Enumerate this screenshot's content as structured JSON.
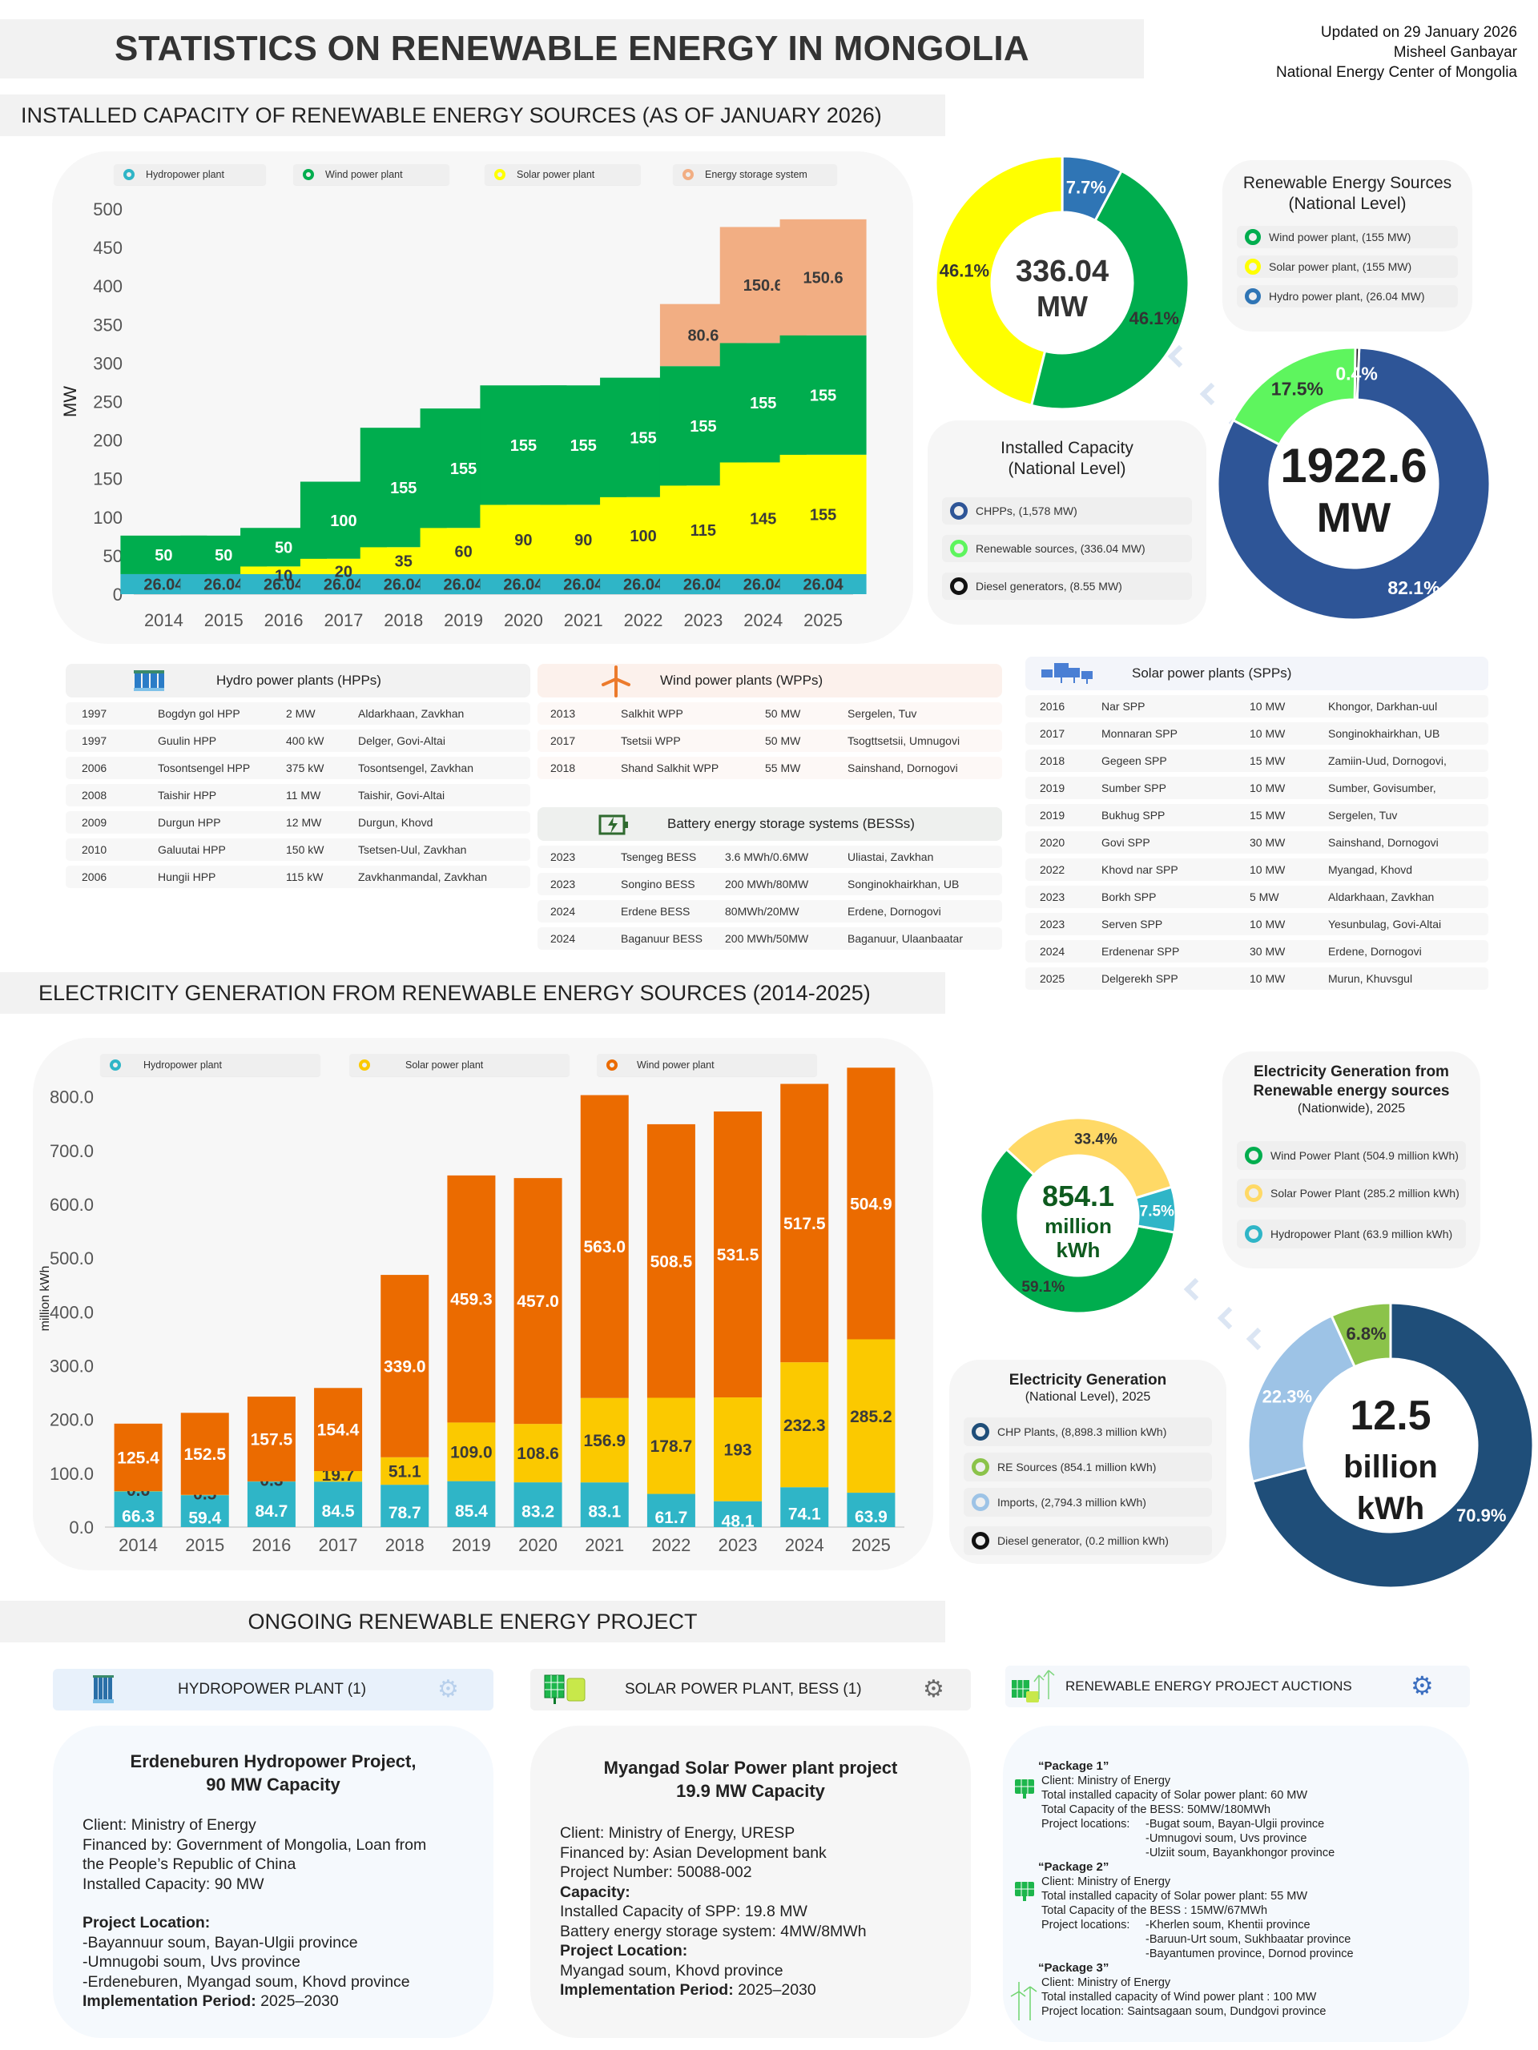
{
  "header": {
    "title": "STATISTICS ON RENEWABLE ENERGY IN MONGOLIA",
    "updated": "Updated on 29 January 2026",
    "author": "Misheel Ganbayar",
    "org": "National Energy Center of Mongolia"
  },
  "sections": {
    "installed": "INSTALLED CAPACITY OF RENEWABLE ENERGY SOURCES (AS OF JANUARY 2026)",
    "generation": "ELECTRICITY GENERATION FROM RENEWABLE ENERGY SOURCES (2014-2025)",
    "ongoing": "ONGOING RENEWABLE ENERGY PROJECT"
  },
  "colors": {
    "hydro": "#2fb5c7",
    "wind": "#00ad4e",
    "solar": "#ffff00",
    "storage": "#f2ae83",
    "gen_wind": "#eb6b00",
    "gen_solar": "#fbc900",
    "chpp": "#2e5597",
    "renew_light": "#5ef55e",
    "pie_hydro": "#2f75b5"
  },
  "chart_data": [
    {
      "type": "bar",
      "stacked": true,
      "title": "Installed capacity of renewable energy sources",
      "ylabel": "MW",
      "xlabel": "",
      "ylim": [
        0,
        500
      ],
      "yticks": [
        0,
        50,
        100,
        150,
        200,
        250,
        300,
        350,
        400,
        450,
        500
      ],
      "categories": [
        "2014",
        "2015",
        "2016",
        "2017",
        "2018",
        "2019",
        "2020",
        "2021",
        "2022",
        "2023",
        "2024",
        "2025"
      ],
      "legend_position": "top",
      "series": [
        {
          "name": "Hydropower plant",
          "color": "#2fb5c7",
          "values": [
            26.04,
            26.04,
            26.04,
            26.04,
            26.04,
            26.04,
            26.04,
            26.04,
            26.04,
            26.04,
            26.04,
            26.04
          ],
          "labels": [
            "26.04",
            "26.04",
            "26.04",
            "26.04",
            "26.04",
            "26.04",
            "26.04",
            "26.04",
            "26.04",
            "26.04",
            "26.04",
            "26.04"
          ]
        },
        {
          "name": "Solar power plant",
          "color": "#ffff00",
          "values": [
            0,
            0,
            10,
            20,
            35,
            60,
            90,
            90,
            100,
            115,
            145,
            155
          ],
          "labels": [
            "",
            "",
            "10",
            "20",
            "35",
            "60",
            "90",
            "90",
            "100",
            "115",
            "145",
            "155"
          ]
        },
        {
          "name": "Wind power plant",
          "color": "#00ad4e",
          "values": [
            50,
            50,
            50,
            100,
            155,
            155,
            155,
            155,
            155,
            155,
            155,
            155
          ],
          "labels": [
            "50",
            "50",
            "50",
            "100",
            "155",
            "155",
            "155",
            "155",
            "155",
            "155",
            "155",
            "155"
          ]
        },
        {
          "name": "Energy storage system",
          "color": "#f2ae83",
          "values": [
            0,
            0,
            0,
            0,
            0,
            0,
            0,
            0,
            0,
            80.6,
            150.6,
            150.6
          ],
          "labels": [
            "",
            "",
            "",
            "",
            "",
            "",
            "",
            "",
            "",
            "80.6",
            "150.6",
            "150.6"
          ]
        }
      ],
      "legend": [
        "Hydropower plant",
        "Wind power plant",
        "Solar power plant",
        "Energy storage system"
      ]
    },
    {
      "type": "pie",
      "donut": true,
      "title": "Renewable Energy Sources (National Level)",
      "center_value": "336.04",
      "center_unit": "MW",
      "slices": [
        {
          "name": "Wind power plant",
          "value": 155,
          "percent": "46.1%",
          "color": "#00ad4e"
        },
        {
          "name": "Solar power plant",
          "value": 155,
          "percent": "46.1%",
          "color": "#ffff00"
        },
        {
          "name": "Hydro power plant",
          "value": 26.04,
          "percent": "7.7%",
          "color": "#2f75b5"
        }
      ]
    },
    {
      "type": "pie",
      "donut": true,
      "title": "Installed Capacity (National Level)",
      "center_value": "1922.6",
      "center_unit": "MW",
      "slices": [
        {
          "name": "CHPPs",
          "value": 1578,
          "percent": "82.1%",
          "color": "#2e5597"
        },
        {
          "name": "Renewable sources",
          "value": 336.04,
          "percent": "17.5%",
          "color": "#5ef55e"
        },
        {
          "name": "Diesel generators",
          "value": 8.55,
          "percent": "0.4%",
          "color": "#111111"
        }
      ]
    },
    {
      "type": "bar",
      "stacked": true,
      "title": "Electricity generation from renewable energy sources (2014-2025)",
      "ylabel": "million kWh",
      "xlabel": "",
      "ylim": [
        0,
        850
      ],
      "yticks": [
        0,
        100,
        200,
        300,
        400,
        500,
        600,
        700,
        800
      ],
      "ytick_labels": [
        "0.0",
        "100.0",
        "200.0",
        "300.0",
        "400.0",
        "500.0",
        "600.0",
        "700.0",
        "800.0"
      ],
      "categories": [
        "2014",
        "2015",
        "2016",
        "2017",
        "2018",
        "2019",
        "2020",
        "2021",
        "2022",
        "2023",
        "2024",
        "2025"
      ],
      "legend_position": "top",
      "series": [
        {
          "name": "Hydropower plant",
          "color": "#2fb5c7",
          "values": [
            66.3,
            59.4,
            84.7,
            84.5,
            78.7,
            85.4,
            83.2,
            83.1,
            61.7,
            48.1,
            74.1,
            63.9
          ],
          "labels": [
            "66.3",
            "59.4",
            "84.7",
            "84.5",
            "78.7",
            "85.4",
            "83.2",
            "83.1",
            "61.7",
            "48.1",
            "74.1",
            "63.9"
          ]
        },
        {
          "name": "Solar power plant",
          "color": "#fbc900",
          "values": [
            0.6,
            0.5,
            0.3,
            19.7,
            51.1,
            109.0,
            108.6,
            156.9,
            178.7,
            193,
            232.3,
            285.2
          ],
          "labels": [
            "0.6",
            "0.5",
            "0.3",
            "19.7",
            "51.1",
            "109.0",
            "108.6",
            "156.9",
            "178.7",
            "193",
            "232.3",
            "285.2"
          ]
        },
        {
          "name": "Wind power plant",
          "color": "#eb6b00",
          "values": [
            125.4,
            152.5,
            157.5,
            154.4,
            339.0,
            459.3,
            457.0,
            563.0,
            508.5,
            531.5,
            517.5,
            504.9
          ],
          "labels": [
            "125.4",
            "152.5",
            "157.5",
            "154.4",
            "339.0",
            "459.3",
            "457.0",
            "563.0",
            "508.5",
            "531.5",
            "517.5",
            "504.9"
          ]
        }
      ],
      "legend": [
        "Hydropower plant",
        "Solar power plant",
        "Wind power plant"
      ]
    },
    {
      "type": "pie",
      "donut": true,
      "title": "Electricity Generation from Renewable energy sources (Nationwide), 2025",
      "center_value": "854.1",
      "center_unit": "million kWh",
      "slices": [
        {
          "name": "Wind Power Plant",
          "value": 504.9,
          "percent": "59.1%",
          "color": "#00ad4e"
        },
        {
          "name": "Solar Power Plant",
          "value": 285.2,
          "percent": "33.4%",
          "color": "#ffd966"
        },
        {
          "name": "Hydropower Plant",
          "value": 63.9,
          "percent": "7.5%",
          "color": "#2fb5c7"
        }
      ]
    },
    {
      "type": "pie",
      "donut": true,
      "title": "Electricity Generation (National Level), 2025",
      "center_value": "12.5",
      "center_unit": "billion kWh",
      "slices": [
        {
          "name": "CHP Plants",
          "value": 8898.3,
          "percent": "70.9%",
          "color": "#1f4e79"
        },
        {
          "name": "Imports",
          "value": 2794.3,
          "percent": "22.3%",
          "color": "#9dc3e6"
        },
        {
          "name": "RE Sources",
          "value": 854.1,
          "percent": "6.8%",
          "color": "#8bc34a"
        },
        {
          "name": "Diesel generator",
          "value": 0.2,
          "percent": "",
          "color": "#111111"
        }
      ]
    }
  ],
  "legends": {
    "res_national": {
      "title1": "Renewable Energy Sources",
      "title2": "(National Level)",
      "items": [
        "Wind power plant, (155 MW)",
        "Solar power plant, (155 MW)",
        "Hydro power plant, (26.04 MW)"
      ]
    },
    "installed_national": {
      "title1": "Installed Capacity",
      "title2": "(National Level)",
      "items": [
        "CHPPs, (1,578 MW)",
        "Renewable sources, (336.04 MW)",
        "Diesel generators, (8.55 MW)"
      ]
    },
    "re_gen": {
      "title1": "Electricity Generation from",
      "title2": "Renewable energy sources",
      "title3": "(Nationwide), 2025",
      "items": [
        "Wind Power Plant (504.9 million kWh)",
        "Solar Power Plant (285.2 million kWh)",
        "Hydropower Plant (63.9 million kWh)"
      ]
    },
    "national_gen": {
      "title1": "Electricity Generation",
      "title2": "(National Level), 2025",
      "items": [
        "CHP Plants, (8,898.3 million kWh)",
        "RE Sources (854.1 million kWh)",
        "Imports, (2,794.3 million kWh)",
        "Diesel generator, (0.2 million kWh)"
      ]
    }
  },
  "tables": {
    "hpp": {
      "title": "Hydro power plants (HPPs)",
      "rows": [
        [
          "1997",
          "Bogdyn gol HPP",
          "2 MW",
          "Aldarkhaan, Zavkhan"
        ],
        [
          "1997",
          "Guulin HPP",
          "400 kW",
          "Delger, Govi-Altai"
        ],
        [
          "2006",
          "Tosontsengel HPP",
          "375 kW",
          "Tosontsengel, Zavkhan"
        ],
        [
          "2008",
          "Taishir HPP",
          "11 MW",
          "Taishir, Govi-Altai"
        ],
        [
          "2009",
          "Durgun HPP",
          "12 MW",
          "Durgun, Khovd"
        ],
        [
          "2010",
          "Galuutai HPP",
          "150 kW",
          "Tsetsen-Uul, Zavkhan"
        ],
        [
          "2006",
          "Hungii HPP",
          "115 kW",
          "Zavkhanmandal, Zavkhan"
        ]
      ]
    },
    "wpp": {
      "title": "Wind power plants (WPPs)",
      "rows": [
        [
          "2013",
          "Salkhit WPP",
          "50 MW",
          "Sergelen, Tuv"
        ],
        [
          "2017",
          "Tsetsii WPP",
          "50 MW",
          "Tsogttsetsii, Umnugovi"
        ],
        [
          "2018",
          "Shand Salkhit WPP",
          "55 MW",
          "Sainshand, Dornogovi"
        ]
      ]
    },
    "bess": {
      "title": "Battery energy storage systems (BESSs)",
      "rows": [
        [
          "2023",
          "Tsengeg BESS",
          "3.6 MWh/0.6MW",
          "Uliastai, Zavkhan"
        ],
        [
          "2023",
          "Songino BESS",
          "200 MWh/80MW",
          "Songinokhairkhan, UB"
        ],
        [
          "2024",
          "Erdene BESS",
          "80MWh/20MW",
          "Erdene, Dornogovi"
        ],
        [
          "2024",
          "Baganuur BESS",
          "200 MWh/50MW",
          "Baganuur, Ulaanbaatar"
        ]
      ]
    },
    "spp": {
      "title": "Solar power plants (SPPs)",
      "rows": [
        [
          "2016",
          "Nar SPP",
          "10 MW",
          "Khongor, Darkhan-uul"
        ],
        [
          "2017",
          "Monnaran SPP",
          "10 MW",
          "Songinokhairkhan, UB"
        ],
        [
          "2018",
          "Gegeen SPP",
          "15 MW",
          "Zamiin-Uud, Dornogovi,"
        ],
        [
          "2019",
          "Sumber SPP",
          "10 MW",
          "Sumber, Govisumber,"
        ],
        [
          "2019",
          "Bukhug SPP",
          "15 MW",
          "Sergelen, Tuv"
        ],
        [
          "2020",
          "Govi SPP",
          "30 MW",
          "Sainshand, Dornogovi"
        ],
        [
          "2022",
          "Khovd nar SPP",
          "10 MW",
          "Myangad, Khovd"
        ],
        [
          "2023",
          "Borkh SPP",
          "5 MW",
          "Aldarkhaan, Zavkhan"
        ],
        [
          "2023",
          "Serven SPP",
          "10 MW",
          "Yesunbulag, Govi-Altai"
        ],
        [
          "2024",
          "Erdenenar SPP",
          "30 MW",
          "Erdene, Dornogovi"
        ],
        [
          "2025",
          "Delgerekh SPP",
          "10 MW",
          "Murun, Khuvsgul"
        ]
      ]
    }
  },
  "projects": {
    "tabs": [
      "HYDROPOWER PLANT (1)",
      "SOLAR POWER PLANT, BESS (1)",
      "RENEWABLE ENERGY PROJECT AUCTIONS"
    ],
    "hydro": {
      "title1": "Erdeneburen Hydropower Project,",
      "title2": "90 MW Capacity",
      "client": "Client: Ministry of Energy",
      "financed1": "Financed by: Government of Mongolia, Loan from",
      "financed2": "the People’s Republic of China",
      "capacity": "Installed Capacity: 90 MW",
      "loc_label": "Project Location:",
      "locs": [
        "-Bayannuur soum, Bayan-Ulgii province",
        "-Umnugobi soum, Uvs province",
        "-Erdeneburen, Myangad soum, Khovd province"
      ],
      "period_label": "Implementation Period:",
      "period": " 2025–2030"
    },
    "solar": {
      "title1": "Myangad Solar Power plant project",
      "title2": "19.9 MW Capacity",
      "client": "Client: Ministry of Energy, URESP",
      "financed": "Financed by: Asian Development bank",
      "number": "Project Number: 50088-002",
      "cap_label": "Capacity:",
      "spp": "Installed Capacity of SPP: 19.8 MW",
      "bess": "Battery energy storage system: 4MW/8MWh",
      "loc_label": "Project Location:",
      "loc": "Myangad soum, Khovd province",
      "period_label": "Implementation Period:",
      "period": " 2025–2030"
    },
    "auctions": [
      {
        "name": "“Package 1”",
        "client": "Client: Ministry of Energy",
        "cap": "Total installed capacity of Solar power plant: 60 MW",
        "bess": "Total Capacity of the BESS: 50MW/180MWh",
        "loc_label": "Project locations:",
        "locs": [
          "-Bugat soum, Bayan-Ulgii province",
          "-Umnugovi soum, Uvs province",
          "-Ulziit soum, Bayankhongor province"
        ]
      },
      {
        "name": "“Package 2”",
        "client": "Client: Ministry of Energy",
        "cap": "Total installed capacity of Solar power plant: 55 MW",
        "bess": "Total Capacity of the BESS : 15MW/67MWh",
        "loc_label": "Project locations:",
        "locs": [
          "-Kherlen soum, Khentii province",
          "-Baruun-Urt soum, Sukhbaatar province",
          "-Bayantumen province, Dornod province"
        ]
      },
      {
        "name": "“Package 3”",
        "client": "Client: Ministry of Energy",
        "cap": "Total installed capacity of Wind power plant : 100 MW",
        "loc": "Project location: Saintsagaan soum, Dundgovi province"
      }
    ]
  }
}
